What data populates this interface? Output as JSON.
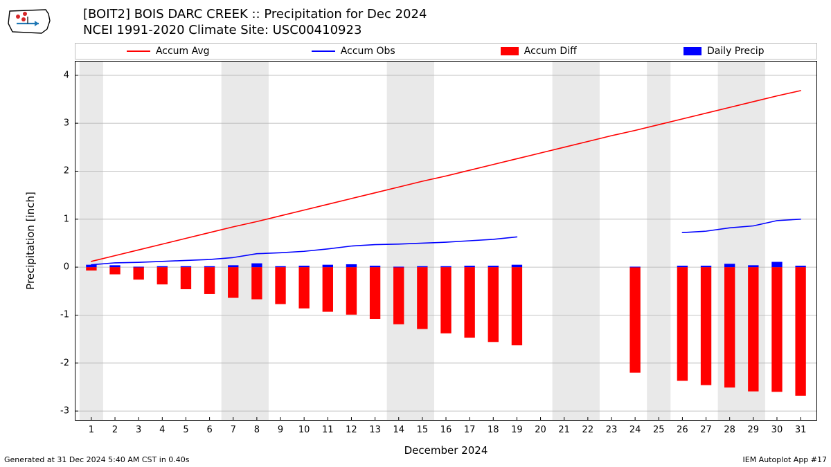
{
  "title_line1": "[BOIT2] BOIS DARC CREEK :: Precipitation for Dec 2024",
  "title_line2": "NCEI 1991-2020 Climate Site: USC00410923",
  "y_label": "Precipitation [inch]",
  "x_label": "December 2024",
  "footer_left": "Generated at 31 Dec 2024 5:40 AM CST in 0.40s",
  "footer_right": "IEM Autoplot App #17",
  "legend": {
    "accum_avg": "Accum Avg",
    "accum_obs": "Accum Obs",
    "accum_diff": "Accum Diff",
    "daily_precip": "Daily Precip"
  },
  "chart": {
    "type": "combo-line-bar",
    "xlim": [
      0.3,
      31.7
    ],
    "ylim": [
      -3.2,
      4.3
    ],
    "y_ticks": [
      -3,
      -2,
      -1,
      0,
      1,
      2,
      3,
      4
    ],
    "x_ticks": [
      1,
      2,
      3,
      4,
      5,
      6,
      7,
      8,
      9,
      10,
      11,
      12,
      13,
      14,
      15,
      16,
      17,
      18,
      19,
      20,
      21,
      22,
      23,
      24,
      25,
      26,
      27,
      28,
      29,
      30,
      31
    ],
    "days": [
      1,
      2,
      3,
      4,
      5,
      6,
      7,
      8,
      9,
      10,
      11,
      12,
      13,
      14,
      15,
      16,
      17,
      18,
      19,
      20,
      21,
      22,
      23,
      24,
      25,
      26,
      27,
      28,
      29,
      30,
      31
    ],
    "weekend_bands": [
      [
        0.5,
        1.5
      ],
      [
        6.5,
        8.5
      ],
      [
        13.5,
        15.5
      ],
      [
        20.5,
        22.5
      ],
      [
        24.5,
        25.5
      ],
      [
        27.5,
        29.5
      ]
    ],
    "band_color": "#e9e9e9",
    "background_color": "#ffffff",
    "grid_color": "#b0b0b0",
    "axis_color": "#000000",
    "accum_avg": {
      "color": "#ff0000",
      "width": 1.6,
      "values": [
        0.12,
        0.24,
        0.36,
        0.48,
        0.6,
        0.72,
        0.84,
        0.95,
        1.07,
        1.19,
        1.31,
        1.43,
        1.55,
        1.67,
        1.79,
        1.9,
        2.02,
        2.14,
        2.26,
        2.38,
        2.5,
        2.62,
        2.74,
        2.85,
        2.97,
        3.09,
        3.21,
        3.33,
        3.45,
        3.57,
        3.68
      ]
    },
    "accum_obs": {
      "color": "#0000ff",
      "width": 1.6,
      "values": [
        0.05,
        0.09,
        0.1,
        0.12,
        0.14,
        0.16,
        0.2,
        0.28,
        0.3,
        0.33,
        0.38,
        0.44,
        0.47,
        0.48,
        0.5,
        0.52,
        0.55,
        0.58,
        0.63,
        null,
        null,
        null,
        null,
        null,
        null,
        0.72,
        0.75,
        0.82,
        0.86,
        0.97,
        1.0
      ]
    },
    "accum_diff": {
      "color": "#ff0000",
      "bar_width": 0.45,
      "values": [
        -0.07,
        -0.15,
        -0.26,
        -0.36,
        -0.46,
        -0.56,
        -0.64,
        -0.67,
        -0.77,
        -0.86,
        -0.93,
        -0.99,
        -1.08,
        -1.19,
        -1.29,
        -1.38,
        -1.47,
        -1.56,
        -1.63,
        null,
        null,
        null,
        null,
        -2.2,
        null,
        -2.37,
        -2.46,
        -2.51,
        -2.59,
        -2.6,
        -2.68
      ]
    },
    "daily_precip": {
      "color": "#0000ff",
      "bar_width": 0.45,
      "values": [
        0.05,
        0.04,
        0.01,
        0.02,
        0.02,
        0.02,
        0.04,
        0.08,
        0.02,
        0.03,
        0.05,
        0.06,
        0.03,
        0.01,
        0.02,
        0.02,
        0.03,
        0.03,
        0.05,
        null,
        null,
        null,
        null,
        0.01,
        null,
        0.03,
        0.03,
        0.07,
        0.04,
        0.11,
        0.03
      ]
    },
    "axis_font_size": 13,
    "label_font_size": 15,
    "title_font_size": 18
  },
  "logo_colors": {
    "outline": "#000000",
    "vane_red": "#d62728",
    "vane_blue": "#1f77b4"
  }
}
